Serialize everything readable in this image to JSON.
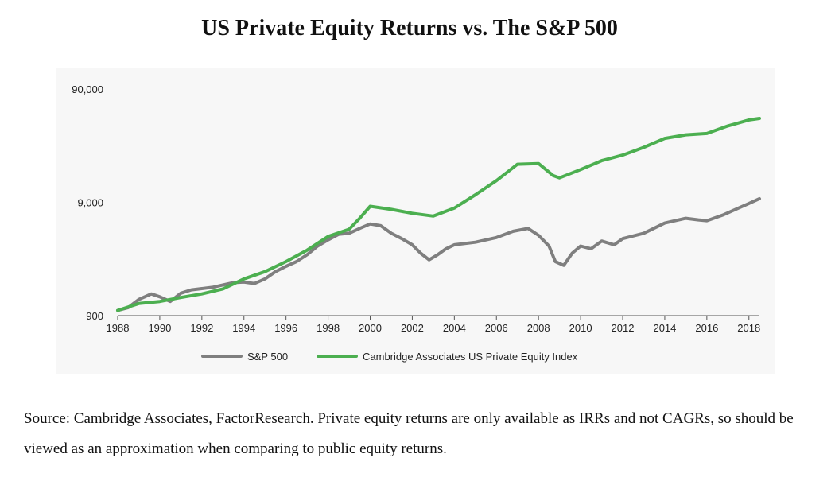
{
  "page": {
    "title": "US Private Equity Returns vs. The S&P 500",
    "source_note": "Source: Cambridge Associates, FactorResearch. Private equity returns are only available as IRRs and not CAGRs, so should be viewed as an approximation when comparing to public equity returns."
  },
  "chart_data": {
    "type": "line",
    "title": "US Private Equity Returns vs. The S&P 500",
    "xlabel": "",
    "ylabel": "",
    "y_scale": "log",
    "ylim": [
      900,
      90000
    ],
    "xlim": [
      1988,
      2018.5
    ],
    "x_ticks": [
      "1988",
      "1990",
      "1992",
      "1994",
      "1996",
      "1998",
      "2000",
      "2002",
      "2004",
      "2006",
      "2008",
      "2010",
      "2012",
      "2014",
      "2016",
      "2018"
    ],
    "y_ticks": [
      {
        "value": 900,
        "label": "900"
      },
      {
        "value": 9000,
        "label": "9,000"
      },
      {
        "value": 90000,
        "label": "90,000"
      }
    ],
    "legend_position": "bottom-center",
    "series": [
      {
        "name": "S&P 500",
        "color": "#7f7f7f",
        "points": [
          [
            1988,
            1000
          ],
          [
            1988.5,
            1060
          ],
          [
            1989,
            1250
          ],
          [
            1989.6,
            1400
          ],
          [
            1990,
            1320
          ],
          [
            1990.5,
            1200
          ],
          [
            1991,
            1420
          ],
          [
            1991.5,
            1520
          ],
          [
            1992,
            1560
          ],
          [
            1992.5,
            1600
          ],
          [
            1993,
            1680
          ],
          [
            1993.5,
            1760
          ],
          [
            1994,
            1780
          ],
          [
            1994.5,
            1730
          ],
          [
            1995,
            1900
          ],
          [
            1995.5,
            2200
          ],
          [
            1996,
            2450
          ],
          [
            1996.5,
            2700
          ],
          [
            1997,
            3100
          ],
          [
            1997.5,
            3700
          ],
          [
            1998,
            4200
          ],
          [
            1998.5,
            4700
          ],
          [
            1999,
            4800
          ],
          [
            1999.5,
            5300
          ],
          [
            2000,
            5800
          ],
          [
            2000.5,
            5600
          ],
          [
            2001,
            4800
          ],
          [
            2001.5,
            4300
          ],
          [
            2002,
            3800
          ],
          [
            2002.4,
            3200
          ],
          [
            2002.8,
            2800
          ],
          [
            2003.2,
            3100
          ],
          [
            2003.6,
            3500
          ],
          [
            2004,
            3800
          ],
          [
            2005,
            4000
          ],
          [
            2006,
            4400
          ],
          [
            2006.8,
            5000
          ],
          [
            2007.5,
            5300
          ],
          [
            2008,
            4600
          ],
          [
            2008.5,
            3700
          ],
          [
            2008.8,
            2700
          ],
          [
            2009.2,
            2500
          ],
          [
            2009.6,
            3200
          ],
          [
            2010,
            3700
          ],
          [
            2010.5,
            3500
          ],
          [
            2011,
            4100
          ],
          [
            2011.6,
            3800
          ],
          [
            2012,
            4300
          ],
          [
            2013,
            4800
          ],
          [
            2014,
            5900
          ],
          [
            2015,
            6500
          ],
          [
            2015.6,
            6300
          ],
          [
            2016,
            6200
          ],
          [
            2016.8,
            7000
          ],
          [
            2017.5,
            8000
          ],
          [
            2018,
            8800
          ],
          [
            2018.5,
            9700
          ]
        ]
      },
      {
        "name": "Cambridge Associates US Private Equity Index",
        "color": "#4caf50",
        "points": [
          [
            1988,
            1000
          ],
          [
            1989,
            1150
          ],
          [
            1990,
            1200
          ],
          [
            1991,
            1300
          ],
          [
            1992,
            1400
          ],
          [
            1993,
            1550
          ],
          [
            1994,
            1900
          ],
          [
            1995,
            2200
          ],
          [
            1996,
            2700
          ],
          [
            1997,
            3400
          ],
          [
            1998,
            4500
          ],
          [
            1999,
            5200
          ],
          [
            1999.5,
            6500
          ],
          [
            2000,
            8300
          ],
          [
            2001,
            7800
          ],
          [
            2002,
            7200
          ],
          [
            2003,
            6800
          ],
          [
            2004,
            8000
          ],
          [
            2005,
            10500
          ],
          [
            2006,
            14000
          ],
          [
            2007,
            19500
          ],
          [
            2008,
            19800
          ],
          [
            2008.7,
            15500
          ],
          [
            2009,
            14800
          ],
          [
            2010,
            17500
          ],
          [
            2011,
            21000
          ],
          [
            2012,
            23500
          ],
          [
            2013,
            27500
          ],
          [
            2014,
            33000
          ],
          [
            2015,
            35500
          ],
          [
            2016,
            36500
          ],
          [
            2017,
            42500
          ],
          [
            2018,
            48000
          ],
          [
            2018.5,
            49500
          ]
        ]
      }
    ]
  }
}
